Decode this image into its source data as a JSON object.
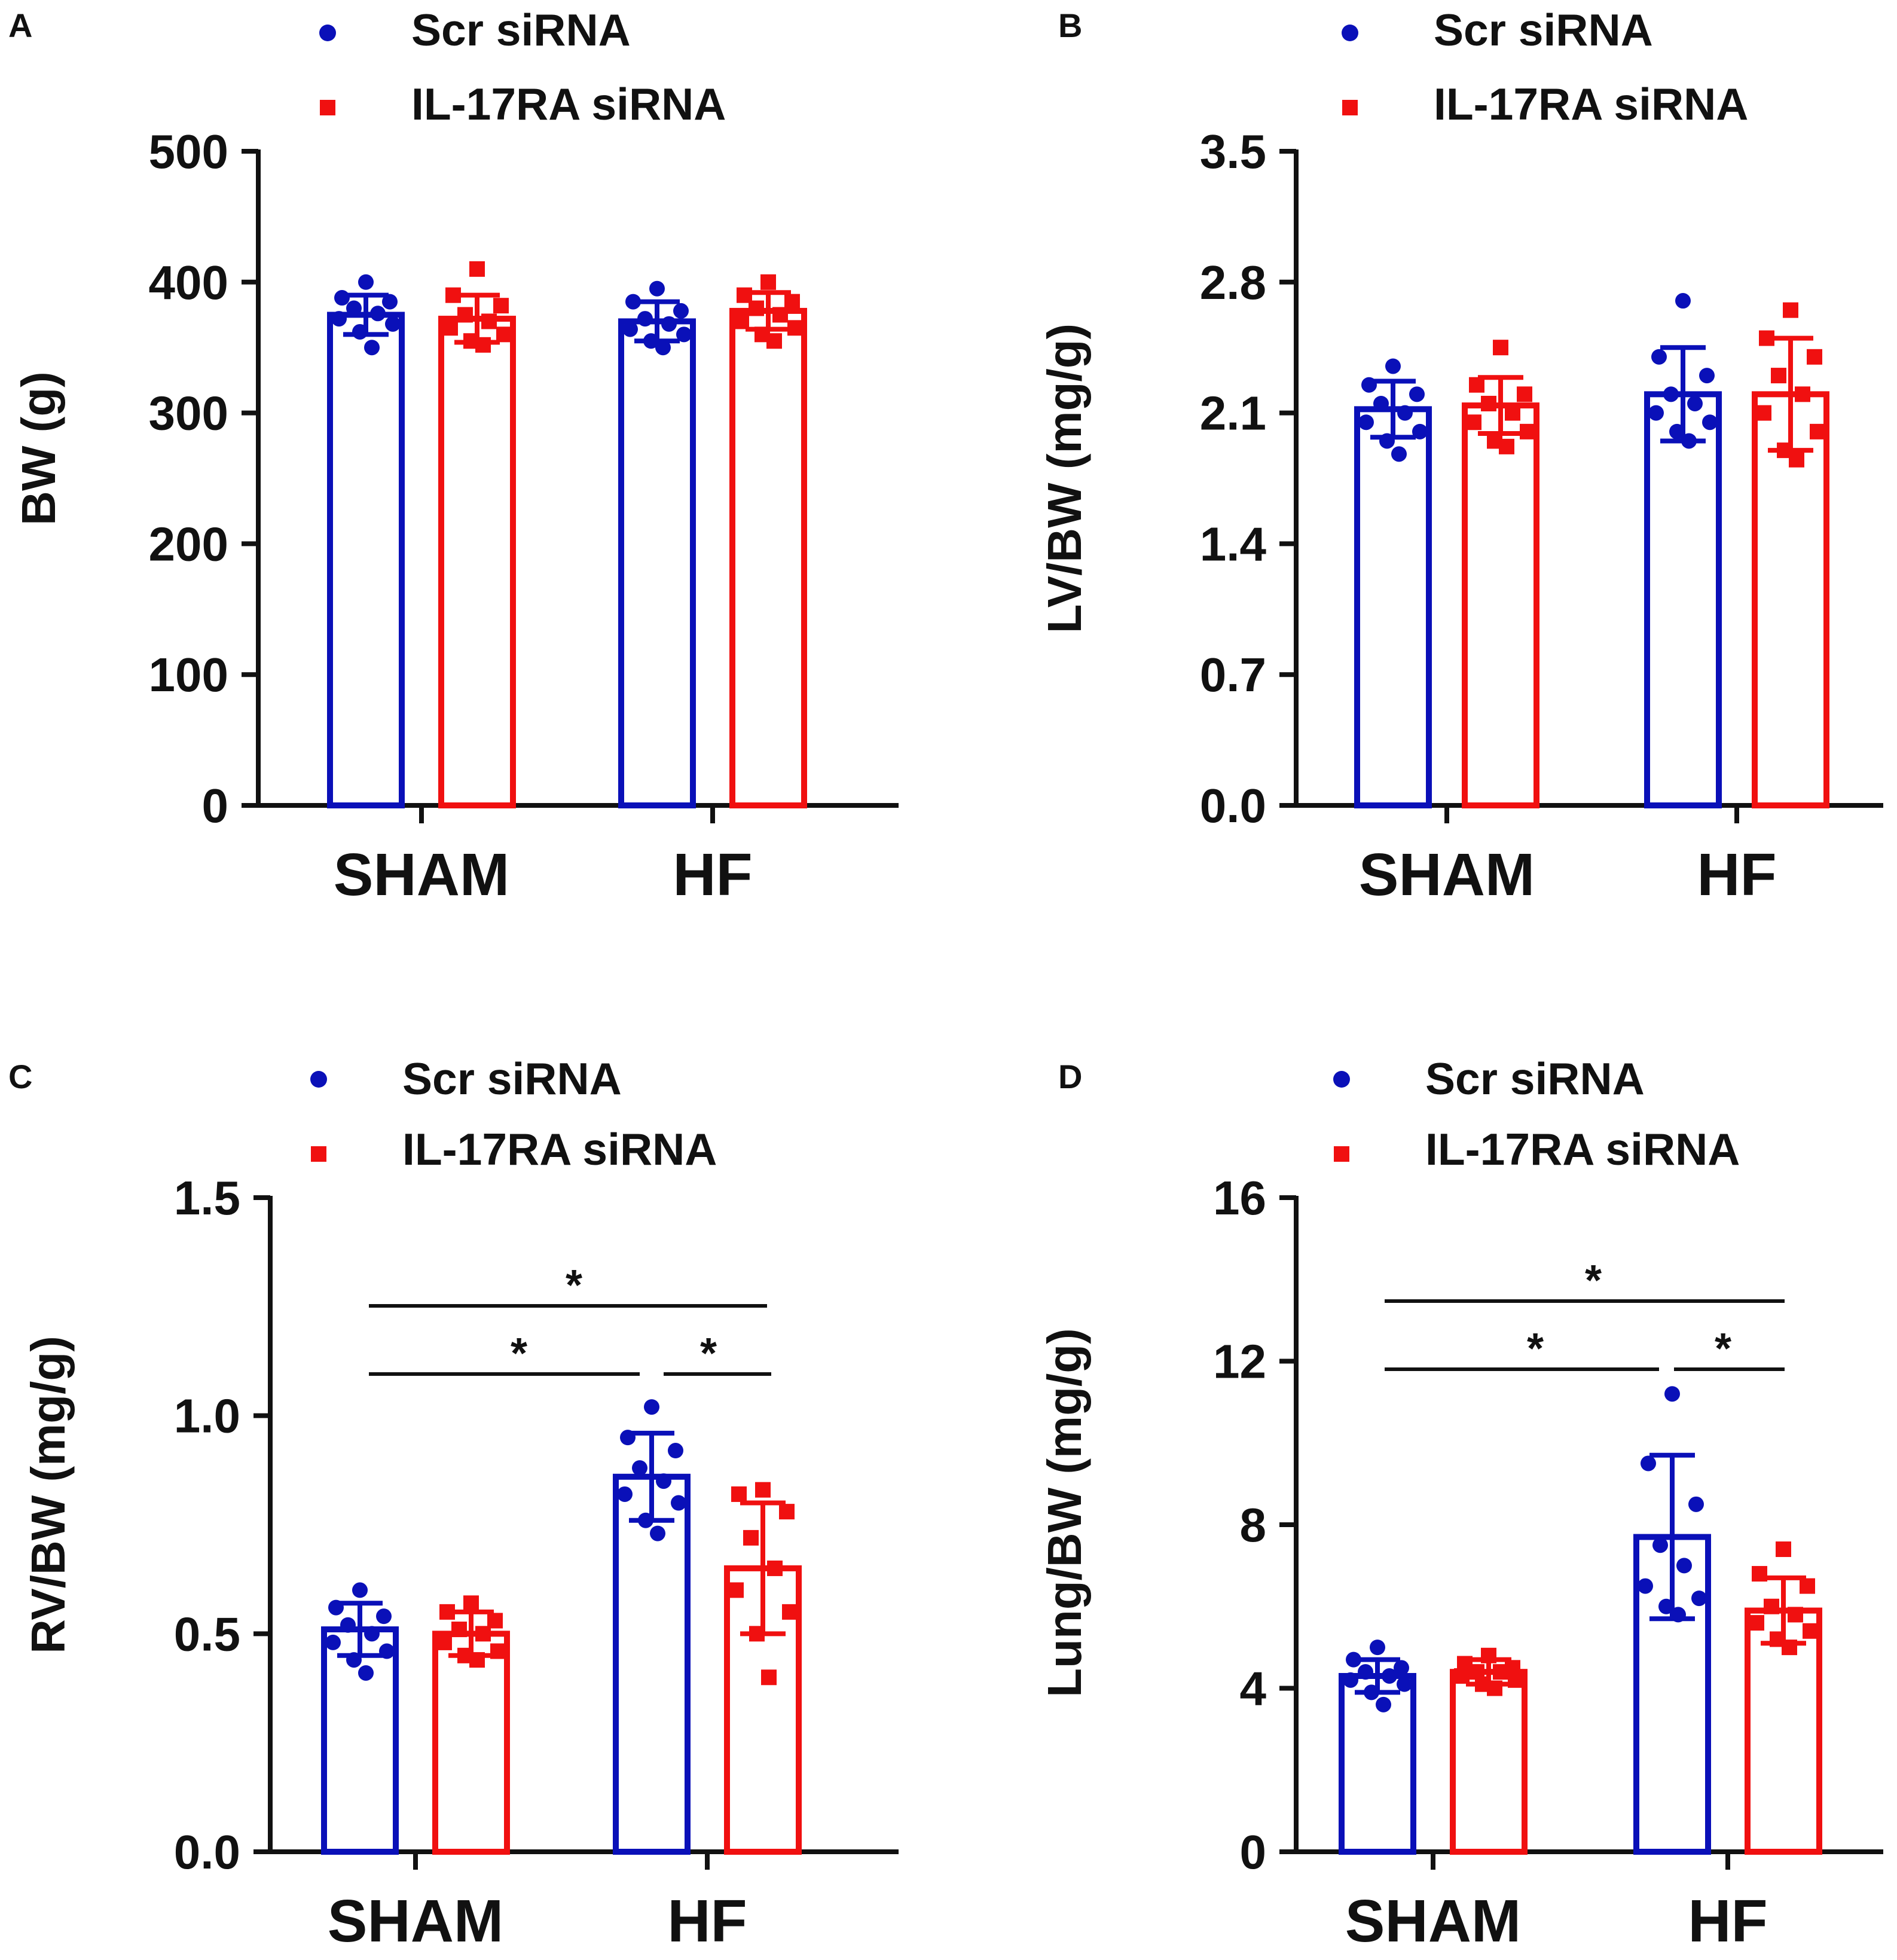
{
  "colors": {
    "scr": "#0a10b8",
    "il17": "#f01010",
    "axis": "#111111"
  },
  "legend": {
    "scr_label": "Scr siRNA",
    "il17_label": "IL-17RA siRNA"
  },
  "chart_data": [
    {
      "panel": "A",
      "type": "bar",
      "ylabel": "BW (g)",
      "ylim": [
        0,
        500
      ],
      "yticks": [
        "0",
        "100",
        "200",
        "300",
        "400",
        "500"
      ],
      "categories": [
        "SHAM",
        "HF"
      ],
      "series": [
        {
          "name": "Scr siRNA",
          "means": [
            375,
            370
          ],
          "sd": [
            15,
            15
          ],
          "points": [
            [
              400,
              388,
              385,
              380,
              376,
              372,
              368,
              362,
              350
            ],
            [
              395,
              385,
              378,
              372,
              368,
              364,
              360,
              355,
              350
            ]
          ]
        },
        {
          "name": "IL-17RA siRNA",
          "means": [
            372,
            378
          ],
          "sd": [
            18,
            14
          ],
          "points": [
            [
              410,
              390,
              382,
              375,
              370,
              365,
              360,
              355,
              352
            ],
            [
              400,
              390,
              385,
              380,
              375,
              370,
              365,
              360,
              355
            ]
          ]
        }
      ],
      "significance": []
    },
    {
      "panel": "B",
      "type": "bar",
      "ylabel": "LV/BW (mg/g)",
      "ylim": [
        0,
        3.5
      ],
      "yticks": [
        "0.0",
        "0.7",
        "1.4",
        "2.1",
        "2.8",
        "3.5"
      ],
      "categories": [
        "SHAM",
        "HF"
      ],
      "series": [
        {
          "name": "Scr siRNA",
          "means": [
            2.12,
            2.2
          ],
          "sd": [
            0.15,
            0.25
          ],
          "points": [
            [
              2.35,
              2.25,
              2.2,
              2.15,
              2.1,
              2.05,
              2.0,
              1.95,
              1.88
            ],
            [
              2.7,
              2.4,
              2.3,
              2.2,
              2.15,
              2.1,
              2.05,
              2.0,
              1.95
            ]
          ]
        },
        {
          "name": "IL-17RA siRNA",
          "means": [
            2.14,
            2.2
          ],
          "sd": [
            0.15,
            0.3
          ],
          "points": [
            [
              2.45,
              2.25,
              2.2,
              2.15,
              2.1,
              2.05,
              2.0,
              1.95,
              1.92
            ],
            [
              2.65,
              2.5,
              2.4,
              2.3,
              2.2,
              2.1,
              2.0,
              1.9,
              1.85
            ]
          ]
        }
      ],
      "significance": []
    },
    {
      "panel": "C",
      "type": "bar",
      "ylabel": "RV/BW (mg/g)",
      "ylim": [
        0,
        1.5
      ],
      "yticks": [
        "0.0",
        "0.5",
        "1.0",
        "1.5"
      ],
      "categories": [
        "SHAM",
        "HF"
      ],
      "series": [
        {
          "name": "Scr siRNA",
          "means": [
            0.51,
            0.86
          ],
          "sd": [
            0.06,
            0.1
          ],
          "points": [
            [
              0.6,
              0.56,
              0.54,
              0.52,
              0.5,
              0.48,
              0.46,
              0.44,
              0.41
            ],
            [
              1.02,
              0.95,
              0.92,
              0.88,
              0.85,
              0.82,
              0.8,
              0.76,
              0.73
            ]
          ]
        },
        {
          "name": "IL-17RA siRNA",
          "means": [
            0.5,
            0.65
          ],
          "sd": [
            0.05,
            0.15
          ],
          "points": [
            [
              0.57,
              0.55,
              0.53,
              0.51,
              0.5,
              0.48,
              0.46,
              0.45,
              0.44
            ],
            [
              0.83,
              0.82,
              0.78,
              0.72,
              0.65,
              0.6,
              0.55,
              0.5,
              0.4
            ]
          ]
        }
      ],
      "significance": [
        {
          "from": "SHAM Scr siRNA",
          "to": "HF IL-17RA siRNA",
          "label": "*"
        },
        {
          "from": "SHAM Scr siRNA",
          "to": "HF Scr siRNA",
          "label": "*"
        },
        {
          "from": "HF Scr siRNA",
          "to": "HF IL-17RA siRNA",
          "label": "*"
        }
      ]
    },
    {
      "panel": "D",
      "type": "bar",
      "ylabel": "Lung/BW (mg/g)",
      "ylim": [
        0,
        16
      ],
      "yticks": [
        "0",
        "4",
        "8",
        "12",
        "16"
      ],
      "categories": [
        "SHAM",
        "HF"
      ],
      "series": [
        {
          "name": "Scr siRNA",
          "means": [
            4.3,
            7.7
          ],
          "sd": [
            0.4,
            2.0
          ],
          "points": [
            [
              5.0,
              4.7,
              4.5,
              4.4,
              4.3,
              4.2,
              4.1,
              3.9,
              3.6
            ],
            [
              11.2,
              9.5,
              8.5,
              7.5,
              7.0,
              6.5,
              6.2,
              6.0,
              5.8
            ]
          ]
        },
        {
          "name": "IL-17RA siRNA",
          "means": [
            4.4,
            5.9
          ],
          "sd": [
            0.3,
            0.8
          ],
          "points": [
            [
              4.8,
              4.6,
              4.5,
              4.4,
              4.4,
              4.3,
              4.2,
              4.1,
              4.0
            ],
            [
              7.4,
              6.8,
              6.5,
              6.0,
              5.8,
              5.6,
              5.4,
              5.2,
              5.0
            ]
          ]
        }
      ],
      "significance": [
        {
          "from": "SHAM Scr siRNA",
          "to": "HF IL-17RA siRNA",
          "label": "*"
        },
        {
          "from": "SHAM Scr siRNA",
          "to": "HF Scr siRNA",
          "label": "*"
        },
        {
          "from": "HF Scr siRNA",
          "to": "HF IL-17RA siRNA",
          "label": "*"
        }
      ]
    }
  ]
}
